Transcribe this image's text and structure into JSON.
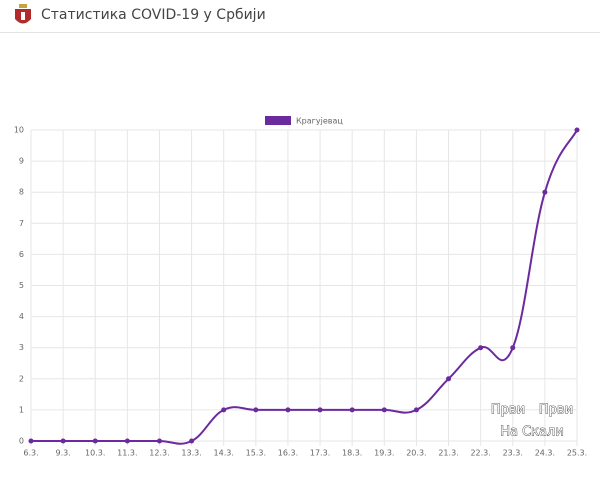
{
  "header": {
    "title": "Статистика COVID-19 у Србији"
  },
  "watermark": [
    "Први",
    "Први",
    "На Скали"
  ],
  "chart_data": {
    "type": "line",
    "categories": [
      "6.3.",
      "9.3.",
      "10.3.",
      "11.3.",
      "12.3.",
      "13.3.",
      "14.3.",
      "15.3.",
      "16.3.",
      "17.3.",
      "18.3.",
      "19.3.",
      "20.3.",
      "21.3.",
      "22.3.",
      "23.3.",
      "24.3.",
      "25.3."
    ],
    "series": [
      {
        "name": "Крагујевац",
        "color": "#6b2a9e",
        "values": [
          0,
          0,
          0,
          0,
          0,
          0,
          1,
          1,
          1,
          1,
          1,
          1,
          1,
          2,
          3,
          3,
          8,
          10
        ]
      }
    ],
    "ylim": [
      0,
      10
    ],
    "yticks": [
      0,
      1,
      2,
      3,
      4,
      5,
      6,
      7,
      8,
      9,
      10
    ],
    "grid": true,
    "legend": "top"
  }
}
